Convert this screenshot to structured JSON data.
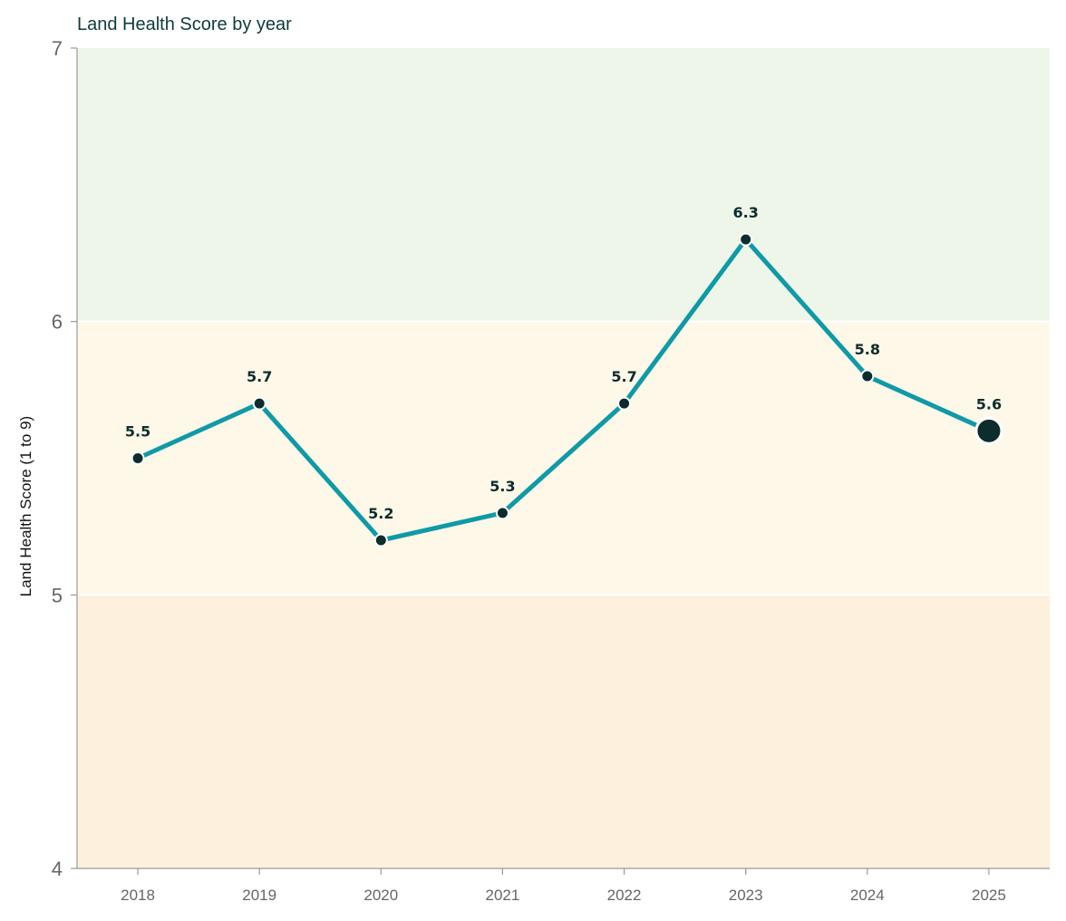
{
  "chart_data": {
    "type": "line",
    "title": "Land Health Score by year",
    "ylabel": "Land Health Score (1 to 9)",
    "xlabel": "",
    "categories": [
      "2018",
      "2019",
      "2020",
      "2021",
      "2022",
      "2023",
      "2024",
      "2025"
    ],
    "series": [
      {
        "values": [
          5.5,
          5.7,
          5.2,
          5.3,
          5.7,
          6.3,
          5.8,
          5.6
        ],
        "data_labels": [
          "5.5",
          "5.7",
          "5.2",
          "5.3",
          "5.7",
          "6.3",
          "5.8",
          "5.6"
        ],
        "color": "#0f9aa6",
        "marker_color": "#0d2d2d",
        "highlight_last_point": true
      }
    ],
    "ylim": [
      4,
      7
    ],
    "yticks": [
      "4",
      "5",
      "6",
      "7"
    ],
    "background_bands": [
      {
        "from": 6,
        "to": 7,
        "color": "#eef6ea"
      },
      {
        "from": 5,
        "to": 6,
        "color": "#fdf8e8"
      },
      {
        "from": 4,
        "to": 5,
        "color": "#fdf0dc"
      }
    ],
    "grid": false,
    "legend": "none"
  }
}
